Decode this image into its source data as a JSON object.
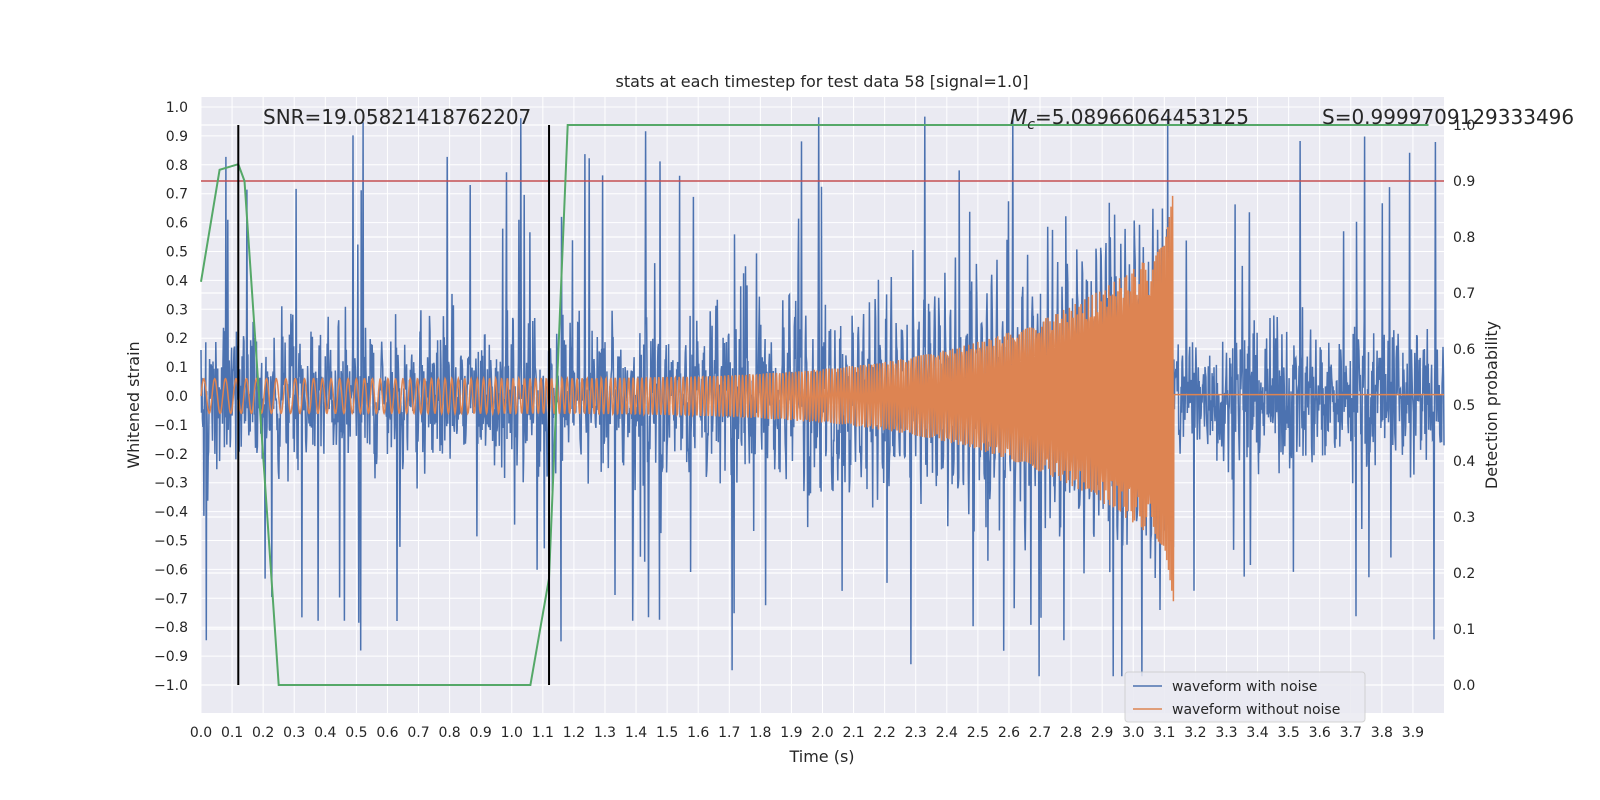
{
  "chart_data": {
    "type": "line",
    "title": "stats at each timestep for test data 58 [signal=1.0]",
    "xlabel": "Time (s)",
    "ylabel": "Whitened strain",
    "y2label": "Detection probability",
    "xlim": [
      0.0,
      4.0
    ],
    "ylim": [
      -1.1,
      1.05
    ],
    "y2lim": [
      -0.05,
      1.0
    ],
    "xticks": [
      "0.0",
      "0.1",
      "0.2",
      "0.3",
      "0.4",
      "0.5",
      "0.6",
      "0.7",
      "0.8",
      "0.9",
      "1.0",
      "1.1",
      "1.2",
      "1.3",
      "1.4",
      "1.5",
      "1.6",
      "1.7",
      "1.8",
      "1.9",
      "2.0",
      "2.1",
      "2.2",
      "2.3",
      "2.4",
      "2.5",
      "2.6",
      "2.7",
      "2.8",
      "2.9",
      "3.0",
      "3.1",
      "3.2",
      "3.3",
      "3.4",
      "3.5",
      "3.6",
      "3.7",
      "3.8",
      "3.9"
    ],
    "yticks": [
      "1.0",
      "0.9",
      "0.8",
      "0.7",
      "0.6",
      "0.5",
      "0.4",
      "0.3",
      "0.2",
      "0.1",
      "0.0",
      "−0.1",
      "−0.2",
      "−0.3",
      "−0.4",
      "−0.5",
      "−0.6",
      "−0.7",
      "−0.8",
      "−0.9",
      "−1.0"
    ],
    "y2ticks": [
      "1.0",
      "0.9",
      "0.8",
      "0.7",
      "0.6",
      "0.5",
      "0.4",
      "0.3",
      "0.2",
      "0.1",
      "0.0"
    ],
    "grid": true,
    "legend_position": "lower right",
    "series": [
      {
        "name": "waveform with noise",
        "color": "#4c72b0",
        "kind": "noisy-strain",
        "amplitude_typical": 0.35,
        "amplitude_peak": 0.97
      },
      {
        "name": "waveform without noise",
        "color": "#dd8452",
        "kind": "chirp",
        "t_start": 0.0,
        "t_merger": 3.13,
        "amp_start": 0.06,
        "amp_merger": 0.55
      },
      {
        "name": "",
        "color": "#55a868",
        "kind": "probability",
        "x": [
          0.0,
          0.06,
          0.12,
          0.14,
          0.25,
          0.3,
          0.5,
          1.0,
          1.06,
          1.12,
          1.18,
          1.3,
          2.0,
          3.0,
          3.95
        ],
        "y": [
          0.72,
          0.92,
          0.93,
          0.9,
          0.0,
          0.0,
          0.0,
          0.0,
          0.0,
          0.19,
          1.0,
          1.0,
          1.0,
          1.0,
          1.0
        ]
      }
    ],
    "threshold": {
      "axis": "y2",
      "value": 0.9,
      "color": "#c44e52"
    },
    "vlines": [
      {
        "x": 0.12
      },
      {
        "x": 1.12
      }
    ],
    "annotations": {
      "snr": "SNR=19.05821418762207",
      "mc_symbol": "M",
      "mc_sub": "c",
      "mc_value": "=5.08966064453125",
      "s": "S=0.9999709129333496"
    }
  }
}
